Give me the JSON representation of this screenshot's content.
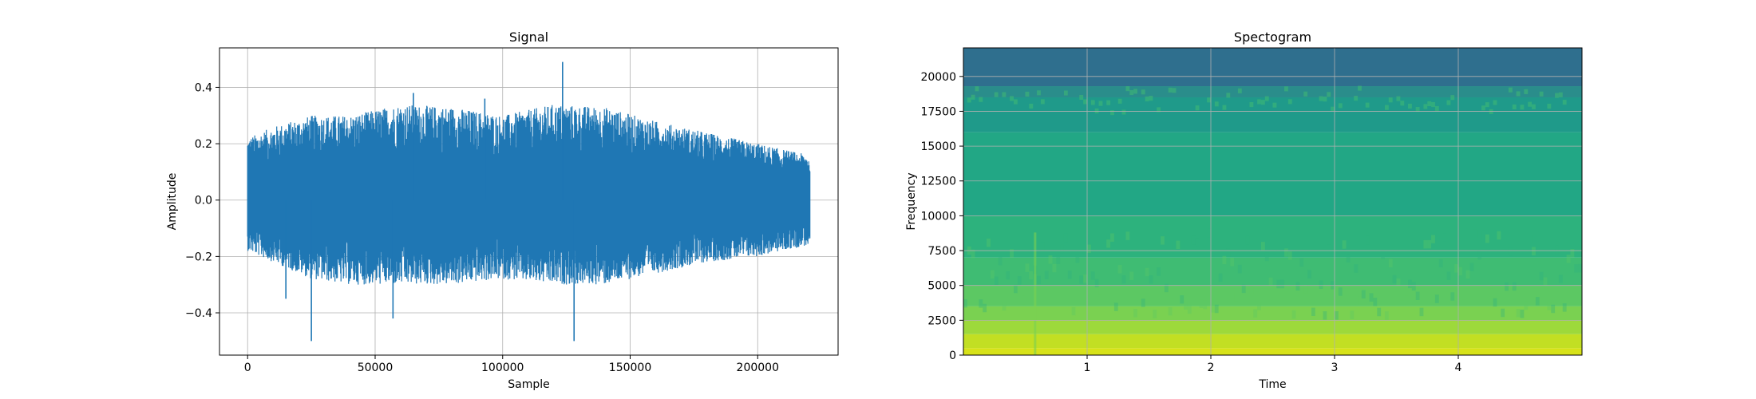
{
  "chart_data": [
    {
      "type": "line",
      "title": "Signal",
      "xlabel": "Sample",
      "ylabel": "Amplitude",
      "xlim": [
        -11025,
        231525
      ],
      "ylim": [
        -0.55,
        0.54
      ],
      "xticks": [
        0,
        50000,
        100000,
        150000,
        200000
      ],
      "xtick_labels": [
        "0",
        "50000",
        "100000",
        "150000",
        "200000"
      ],
      "yticks": [
        -0.4,
        -0.2,
        0.0,
        0.2,
        0.4
      ],
      "ytick_labels": [
        "−0.4",
        "−0.2",
        "0.0",
        "0.2",
        "0.4"
      ],
      "grid": true,
      "color": "#1f77b4",
      "n_samples": 220500,
      "envelope": {
        "x": [
          0,
          10000,
          25000,
          40000,
          60000,
          80000,
          100000,
          120000,
          140000,
          160000,
          180000,
          200000,
          220000
        ],
        "upper": [
          0.22,
          0.26,
          0.3,
          0.3,
          0.34,
          0.33,
          0.3,
          0.34,
          0.33,
          0.28,
          0.24,
          0.2,
          0.16
        ],
        "lower": [
          -0.18,
          -0.22,
          -0.28,
          -0.3,
          -0.3,
          -0.3,
          -0.28,
          -0.3,
          -0.3,
          -0.26,
          -0.22,
          -0.2,
          -0.16
        ]
      },
      "peaks": [
        {
          "x": 123500,
          "y": 0.49
        },
        {
          "x": 25000,
          "y": -0.5
        },
        {
          "x": 128000,
          "y": -0.5
        },
        {
          "x": 57000,
          "y": -0.42
        },
        {
          "x": 15000,
          "y": -0.35
        },
        {
          "x": 93000,
          "y": 0.36
        },
        {
          "x": 65000,
          "y": 0.38
        }
      ]
    },
    {
      "type": "heatmap",
      "title": "Spectogram",
      "xlabel": "Time",
      "ylabel": "Frequency",
      "xlim": [
        0,
        5.0
      ],
      "ylim": [
        0,
        22050
      ],
      "xticks": [
        1,
        2,
        3,
        4
      ],
      "xtick_labels": [
        "1",
        "2",
        "3",
        "4"
      ],
      "yticks": [
        0,
        2500,
        5000,
        7500,
        10000,
        12500,
        15000,
        17500,
        20000
      ],
      "ytick_labels": [
        "0",
        "2500",
        "5000",
        "7500",
        "10000",
        "12500",
        "15000",
        "17500",
        "20000"
      ],
      "grid": true,
      "colormap": "viridis",
      "bands": [
        {
          "f0": 0,
          "f1": 500,
          "color": "#d7e219"
        },
        {
          "f0": 500,
          "f1": 1500,
          "color": "#c2df23"
        },
        {
          "f0": 1500,
          "f1": 2500,
          "color": "#9dd93b"
        },
        {
          "f0": 2500,
          "f1": 3500,
          "color": "#7ad151"
        },
        {
          "f0": 3500,
          "f1": 5000,
          "color": "#5cc863"
        },
        {
          "f0": 5000,
          "f1": 7000,
          "color": "#3fbc73"
        },
        {
          "f0": 7000,
          "f1": 10000,
          "color": "#2db27d"
        },
        {
          "f0": 10000,
          "f1": 16000,
          "color": "#22a785"
        },
        {
          "f0": 16000,
          "f1": 18500,
          "color": "#1f9a8a"
        },
        {
          "f0": 18500,
          "f1": 19300,
          "color": "#2a8d8b"
        },
        {
          "f0": 19300,
          "f1": 22050,
          "color": "#2f6f8e"
        }
      ]
    }
  ]
}
